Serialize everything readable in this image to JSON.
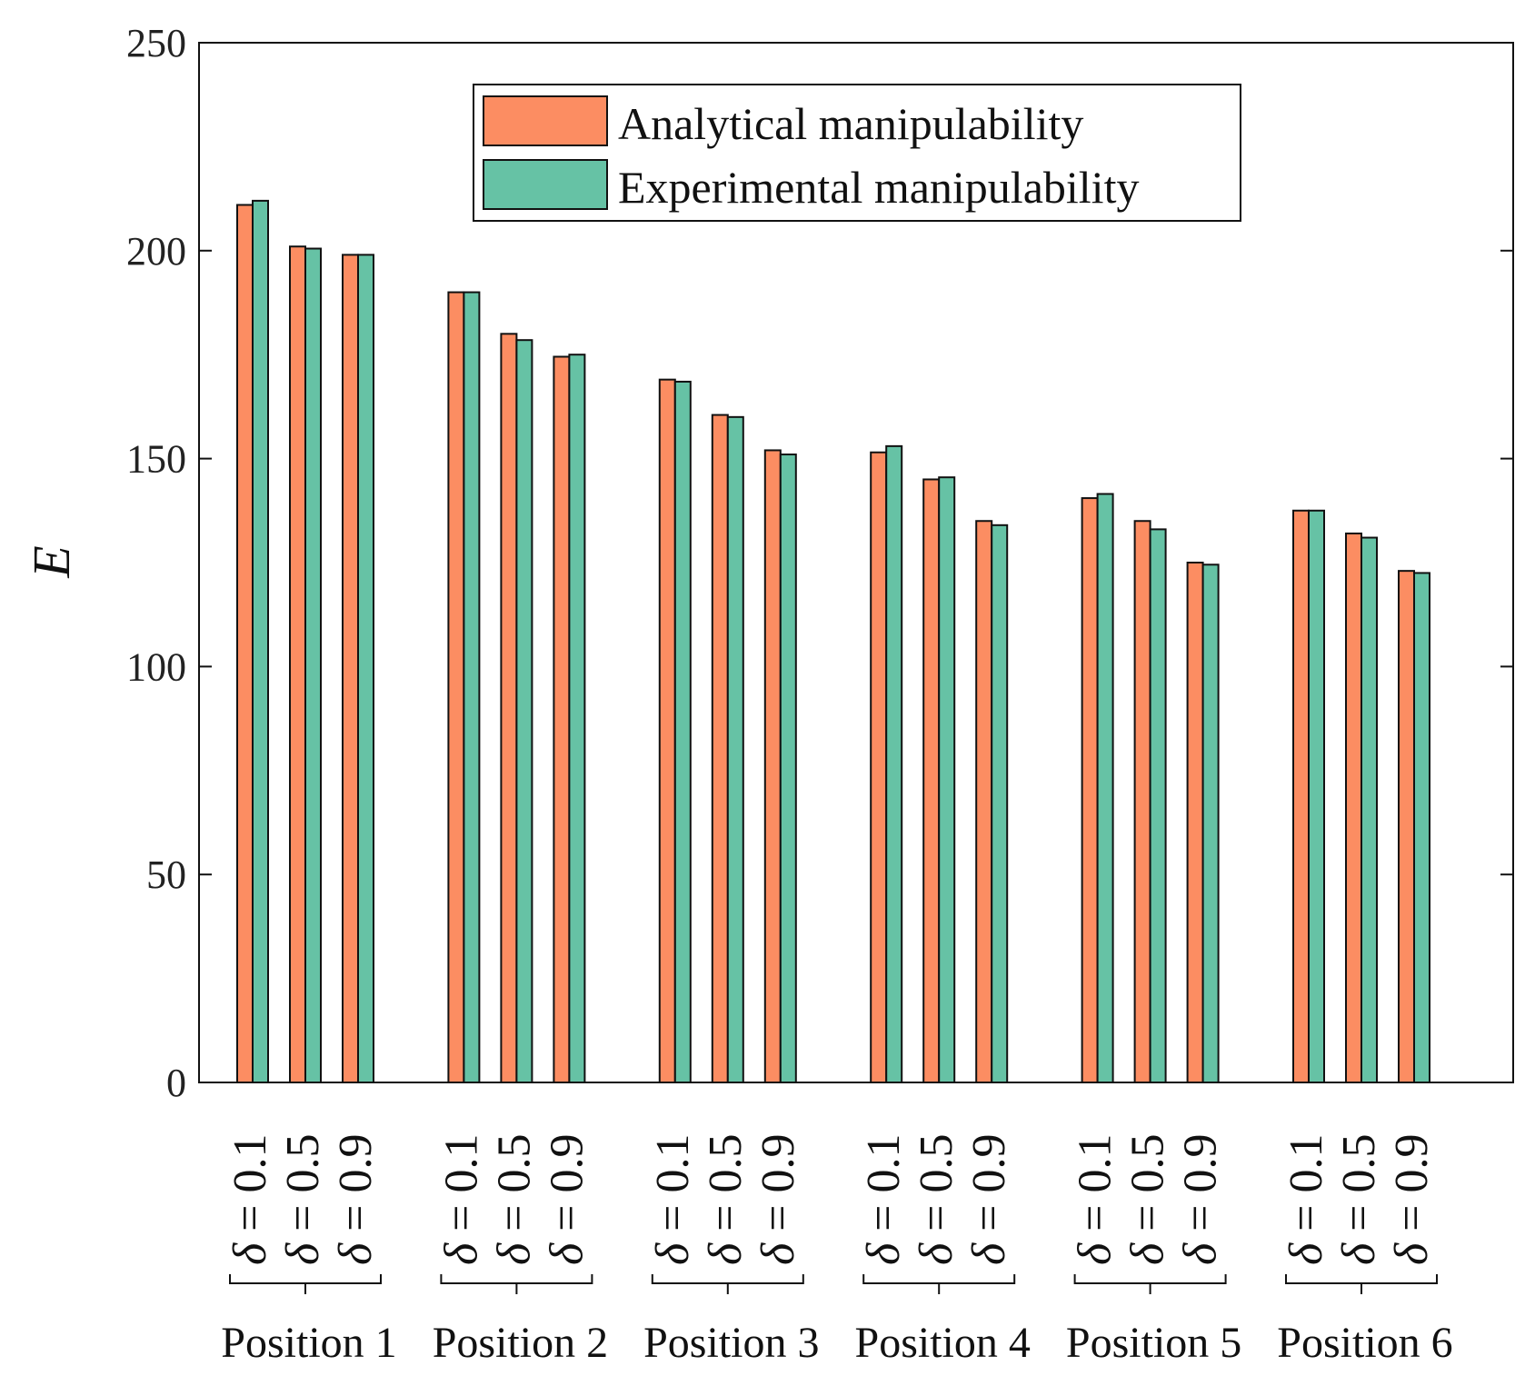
{
  "chart_data": {
    "type": "bar",
    "title": "",
    "xlabel": "",
    "ylabel": "E",
    "ylim": [
      0,
      250
    ],
    "yticks": [
      0,
      50,
      100,
      150,
      200,
      250
    ],
    "grid": false,
    "legend_position": "top-center",
    "groups": [
      "Position 1",
      "Position 2",
      "Position 3",
      "Position 4",
      "Position 5",
      "Position 6"
    ],
    "delta_symbol": "δ",
    "delta_equals": "=",
    "sub_categories": [
      "0.1",
      "0.5",
      "0.9"
    ],
    "series": [
      {
        "name": "Analytical manipulability",
        "color": "#FC8D62",
        "values": [
          [
            211,
            201,
            199
          ],
          [
            190,
            180,
            174.5
          ],
          [
            169,
            160.5,
            152
          ],
          [
            151.5,
            145,
            135
          ],
          [
            140.5,
            135,
            125
          ],
          [
            137.5,
            132,
            123
          ]
        ]
      },
      {
        "name": "Experimental manipulability",
        "color": "#66C2A5",
        "values": [
          [
            212,
            200.5,
            199
          ],
          [
            190,
            178.5,
            175
          ],
          [
            168.5,
            160,
            151
          ],
          [
            153,
            145.5,
            134
          ],
          [
            141.5,
            133,
            124.5
          ],
          [
            137.5,
            131,
            122.5
          ]
        ]
      }
    ]
  }
}
